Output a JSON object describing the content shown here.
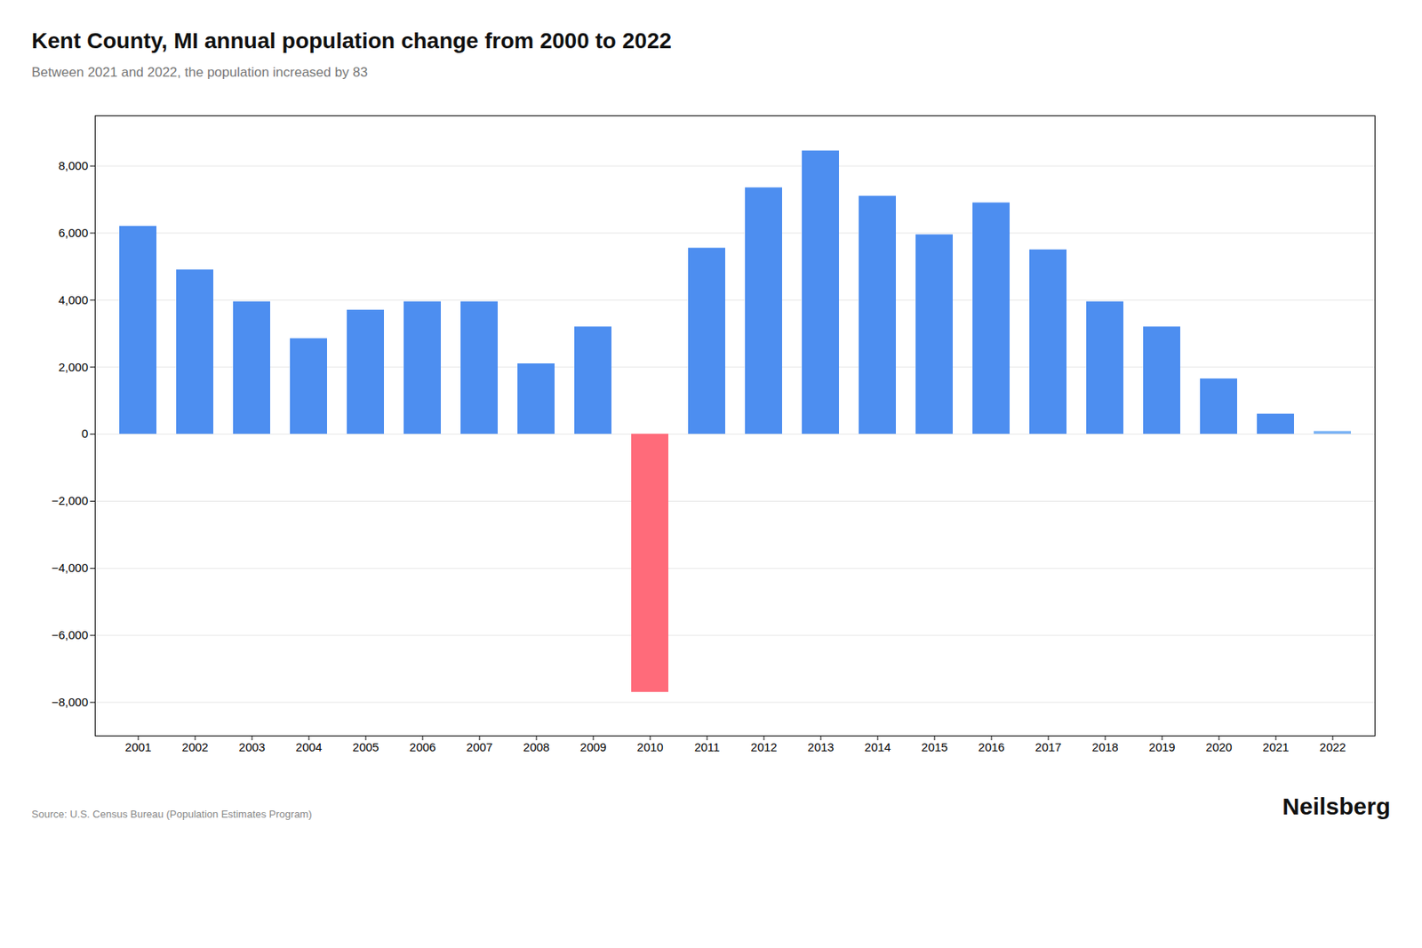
{
  "chart_data": {
    "type": "bar",
    "title": "Kent County, MI annual population change from 2000 to 2022",
    "subtitle": "Between 2021 and 2022, the population increased by 83",
    "annotations": [
      "Source: U.S. Census Bureau (Population Estimates Program)",
      "Neilsberg"
    ],
    "categories": [
      "2001",
      "2002",
      "2003",
      "2004",
      "2005",
      "2006",
      "2007",
      "2008",
      "2009",
      "2010",
      "2011",
      "2012",
      "2013",
      "2014",
      "2015",
      "2016",
      "2017",
      "2018",
      "2019",
      "2020",
      "2021",
      "2022"
    ],
    "values": [
      6200,
      4900,
      3950,
      2850,
      3700,
      3950,
      3950,
      2100,
      3200,
      -7700,
      5550,
      7350,
      8450,
      7100,
      5950,
      6900,
      5500,
      3950,
      3200,
      1650,
      600,
      83
    ],
    "colors": [
      "#4d8ef0",
      "#4d8ef0",
      "#4d8ef0",
      "#4d8ef0",
      "#4d8ef0",
      "#4d8ef0",
      "#4d8ef0",
      "#4d8ef0",
      "#4d8ef0",
      "#ff6b7a",
      "#4d8ef0",
      "#4d8ef0",
      "#4d8ef0",
      "#4d8ef0",
      "#4d8ef0",
      "#4d8ef0",
      "#4d8ef0",
      "#4d8ef0",
      "#4d8ef0",
      "#4d8ef0",
      "#4d8ef0",
      "#7ab3f5"
    ],
    "ylim": [
      -9000,
      9500
    ],
    "yticks": [
      {
        "value": -8000,
        "label": "−8,000"
      },
      {
        "value": -6000,
        "label": "−6,000"
      },
      {
        "value": -4000,
        "label": "−4,000"
      },
      {
        "value": -2000,
        "label": "−2,000"
      },
      0,
      {
        "value": 2000,
        "label": "2,000"
      },
      {
        "value": 4000,
        "label": "4,000"
      },
      {
        "value": 6000,
        "label": "6,000"
      },
      {
        "value": 8000,
        "label": "8,000"
      }
    ],
    "grid": true
  }
}
